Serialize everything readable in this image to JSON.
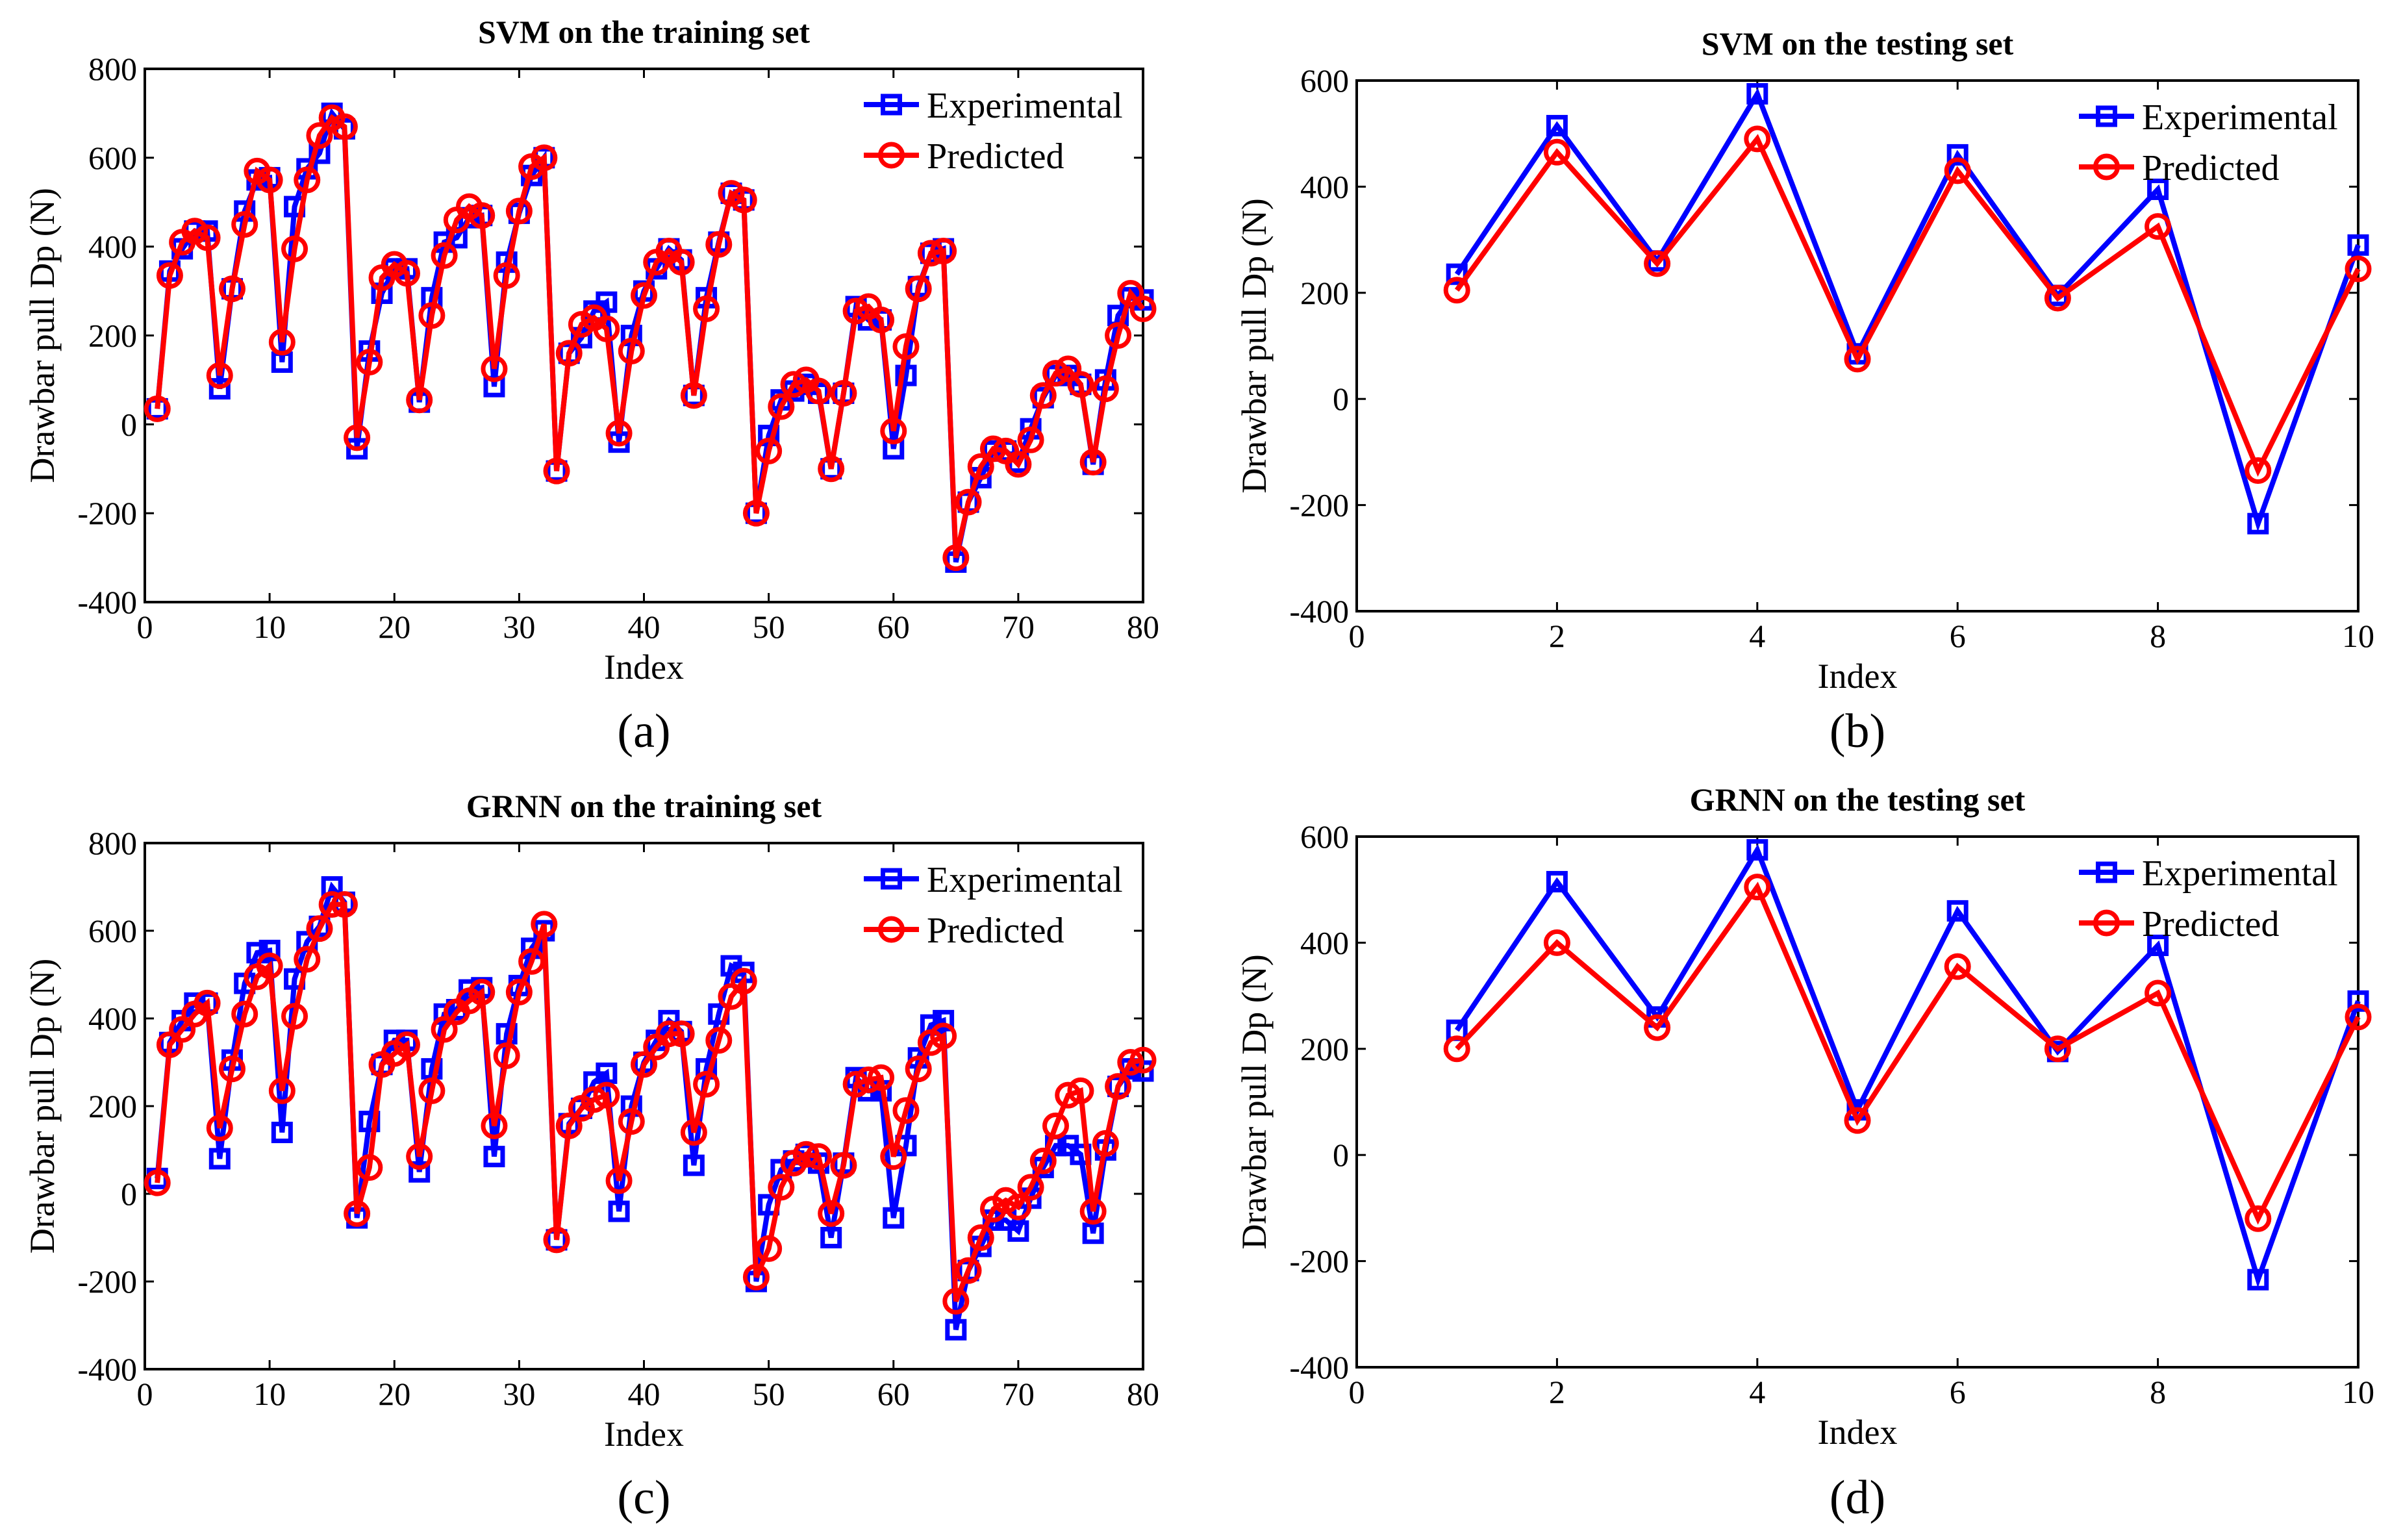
{
  "chart_data": [
    {
      "type": "line",
      "panel_label": "(a)",
      "title": "SVM on the training set",
      "xlabel": "Index",
      "ylabel": "Drawbar pull Dp (N)",
      "xlim": [
        0,
        80
      ],
      "ylim": [
        -400,
        800
      ],
      "xticks": [
        0,
        10,
        20,
        30,
        40,
        50,
        60,
        70,
        80
      ],
      "yticks": [
        -400,
        -200,
        0,
        200,
        400,
        600,
        800
      ],
      "legend": "top-right",
      "x": [
        1,
        2,
        3,
        4,
        5,
        6,
        7,
        8,
        9,
        10,
        11,
        12,
        13,
        14,
        15,
        16,
        17,
        18,
        19,
        20,
        21,
        22,
        23,
        24,
        25,
        26,
        27,
        28,
        29,
        30,
        31,
        32,
        33,
        34,
        35,
        36,
        37,
        38,
        39,
        40,
        41,
        42,
        43,
        44,
        45,
        46,
        47,
        48,
        49,
        50,
        51,
        52,
        53,
        54,
        55,
        56,
        57,
        58,
        59,
        60,
        61,
        62,
        63,
        64,
        65,
        66,
        67,
        68,
        69,
        70,
        71,
        72,
        73,
        74,
        75,
        76,
        77,
        78,
        79,
        80
      ],
      "series": [
        {
          "name": "Experimental",
          "color": "#0000ff",
          "marker": "square",
          "values": [
            35,
            345,
            395,
            435,
            435,
            80,
            305,
            480,
            550,
            555,
            140,
            490,
            575,
            610,
            700,
            665,
            -55,
            165,
            295,
            350,
            350,
            50,
            285,
            410,
            420,
            465,
            470,
            85,
            365,
            475,
            560,
            600,
            -105,
            160,
            195,
            255,
            275,
            -40,
            200,
            300,
            350,
            395,
            370,
            65,
            285,
            410,
            520,
            505,
            -200,
            -25,
            55,
            75,
            90,
            70,
            -100,
            70,
            265,
            235,
            235,
            -55,
            110,
            310,
            385,
            395,
            -310,
            -175,
            -120,
            -60,
            -60,
            -85,
            -10,
            60,
            110,
            110,
            90,
            -90,
            100,
            245,
            285,
            280
          ]
        },
        {
          "name": "Predicted",
          "color": "#ff0000",
          "marker": "circle",
          "values": [
            35,
            335,
            410,
            435,
            420,
            110,
            305,
            450,
            570,
            550,
            185,
            395,
            550,
            650,
            690,
            670,
            -30,
            140,
            330,
            360,
            340,
            55,
            245,
            380,
            460,
            490,
            470,
            125,
            335,
            480,
            580,
            600,
            -105,
            160,
            225,
            240,
            215,
            -20,
            165,
            290,
            365,
            390,
            365,
            65,
            260,
            405,
            520,
            505,
            -200,
            -60,
            40,
            90,
            100,
            75,
            -100,
            70,
            255,
            265,
            235,
            -15,
            175,
            305,
            385,
            390,
            -300,
            -175,
            -95,
            -55,
            -60,
            -90,
            -35,
            65,
            115,
            125,
            90,
            -85,
            80,
            200,
            295,
            260
          ]
        }
      ]
    },
    {
      "type": "line",
      "panel_label": "(b)",
      "title": "SVM on the testing set",
      "xlabel": "Index",
      "ylabel": "Drawbar pull Dp (N)",
      "xlim": [
        0,
        10
      ],
      "ylim": [
        -400,
        600
      ],
      "xticks": [
        0,
        2,
        4,
        6,
        8,
        10
      ],
      "yticks": [
        -400,
        -200,
        0,
        200,
        400,
        600
      ],
      "legend": "top-right",
      "x": [
        1,
        2,
        3,
        4,
        5,
        6,
        7,
        8,
        9,
        10
      ],
      "series": [
        {
          "name": "Experimental",
          "color": "#0000ff",
          "marker": "square",
          "values": [
            235,
            515,
            260,
            575,
            85,
            460,
            195,
            395,
            -235,
            290
          ]
        },
        {
          "name": "Predicted",
          "color": "#ff0000",
          "marker": "circle",
          "values": [
            205,
            465,
            255,
            490,
            75,
            430,
            190,
            325,
            -135,
            245
          ]
        }
      ]
    },
    {
      "type": "line",
      "panel_label": "(c)",
      "title": "GRNN on the training set",
      "xlabel": "Index",
      "ylabel": "Drawbar pull Dp (N)",
      "xlim": [
        0,
        80
      ],
      "ylim": [
        -400,
        800
      ],
      "xticks": [
        0,
        10,
        20,
        30,
        40,
        50,
        60,
        70,
        80
      ],
      "yticks": [
        -400,
        -200,
        0,
        200,
        400,
        600,
        800
      ],
      "legend": "top-right",
      "x": [
        1,
        2,
        3,
        4,
        5,
        6,
        7,
        8,
        9,
        10,
        11,
        12,
        13,
        14,
        15,
        16,
        17,
        18,
        19,
        20,
        21,
        22,
        23,
        24,
        25,
        26,
        27,
        28,
        29,
        30,
        31,
        32,
        33,
        34,
        35,
        36,
        37,
        38,
        39,
        40,
        41,
        42,
        43,
        44,
        45,
        46,
        47,
        48,
        49,
        50,
        51,
        52,
        53,
        54,
        55,
        56,
        57,
        58,
        59,
        60,
        61,
        62,
        63,
        64,
        65,
        66,
        67,
        68,
        69,
        70,
        71,
        72,
        73,
        74,
        75,
        76,
        77,
        78,
        79,
        80
      ],
      "series": [
        {
          "name": "Experimental",
          "color": "#0000ff",
          "marker": "square",
          "values": [
            35,
            345,
            395,
            435,
            435,
            80,
            305,
            480,
            550,
            555,
            140,
            490,
            575,
            610,
            700,
            665,
            -55,
            165,
            295,
            350,
            350,
            50,
            285,
            410,
            420,
            465,
            470,
            85,
            365,
            475,
            560,
            600,
            -105,
            160,
            195,
            255,
            275,
            -40,
            200,
            300,
            350,
            395,
            370,
            65,
            285,
            410,
            520,
            505,
            -200,
            -25,
            55,
            75,
            90,
            70,
            -100,
            70,
            265,
            235,
            235,
            -55,
            110,
            310,
            385,
            395,
            -310,
            -175,
            -120,
            -60,
            -60,
            -85,
            -10,
            60,
            110,
            110,
            90,
            -90,
            100,
            245,
            285,
            280
          ]
        },
        {
          "name": "Predicted",
          "color": "#ff0000",
          "marker": "circle",
          "values": [
            25,
            340,
            375,
            410,
            435,
            150,
            285,
            410,
            495,
            520,
            235,
            405,
            535,
            605,
            660,
            660,
            -45,
            60,
            295,
            320,
            340,
            85,
            235,
            375,
            415,
            440,
            460,
            155,
            315,
            460,
            530,
            615,
            -105,
            155,
            195,
            215,
            225,
            30,
            165,
            295,
            335,
            365,
            365,
            140,
            250,
            350,
            450,
            485,
            -190,
            -125,
            15,
            70,
            90,
            85,
            -45,
            65,
            250,
            260,
            265,
            85,
            190,
            285,
            345,
            360,
            -245,
            -175,
            -100,
            -35,
            -15,
            -30,
            15,
            75,
            155,
            225,
            235,
            -40,
            115,
            245,
            300,
            305
          ]
        }
      ]
    },
    {
      "type": "line",
      "panel_label": "(d)",
      "title": "GRNN on the testing set",
      "xlabel": "Index",
      "ylabel": "Drawbar pull Dp (N)",
      "xlim": [
        0,
        10
      ],
      "ylim": [
        -400,
        600
      ],
      "xticks": [
        0,
        2,
        4,
        6,
        8,
        10
      ],
      "yticks": [
        -400,
        -200,
        0,
        200,
        400,
        600
      ],
      "legend": "top-right",
      "x": [
        1,
        2,
        3,
        4,
        5,
        6,
        7,
        8,
        9,
        10
      ],
      "series": [
        {
          "name": "Experimental",
          "color": "#0000ff",
          "marker": "square",
          "values": [
            235,
            515,
            260,
            575,
            85,
            460,
            195,
            395,
            -235,
            290
          ]
        },
        {
          "name": "Predicted",
          "color": "#ff0000",
          "marker": "circle",
          "values": [
            200,
            400,
            240,
            505,
            65,
            355,
            200,
            305,
            -120,
            260
          ]
        }
      ]
    }
  ]
}
